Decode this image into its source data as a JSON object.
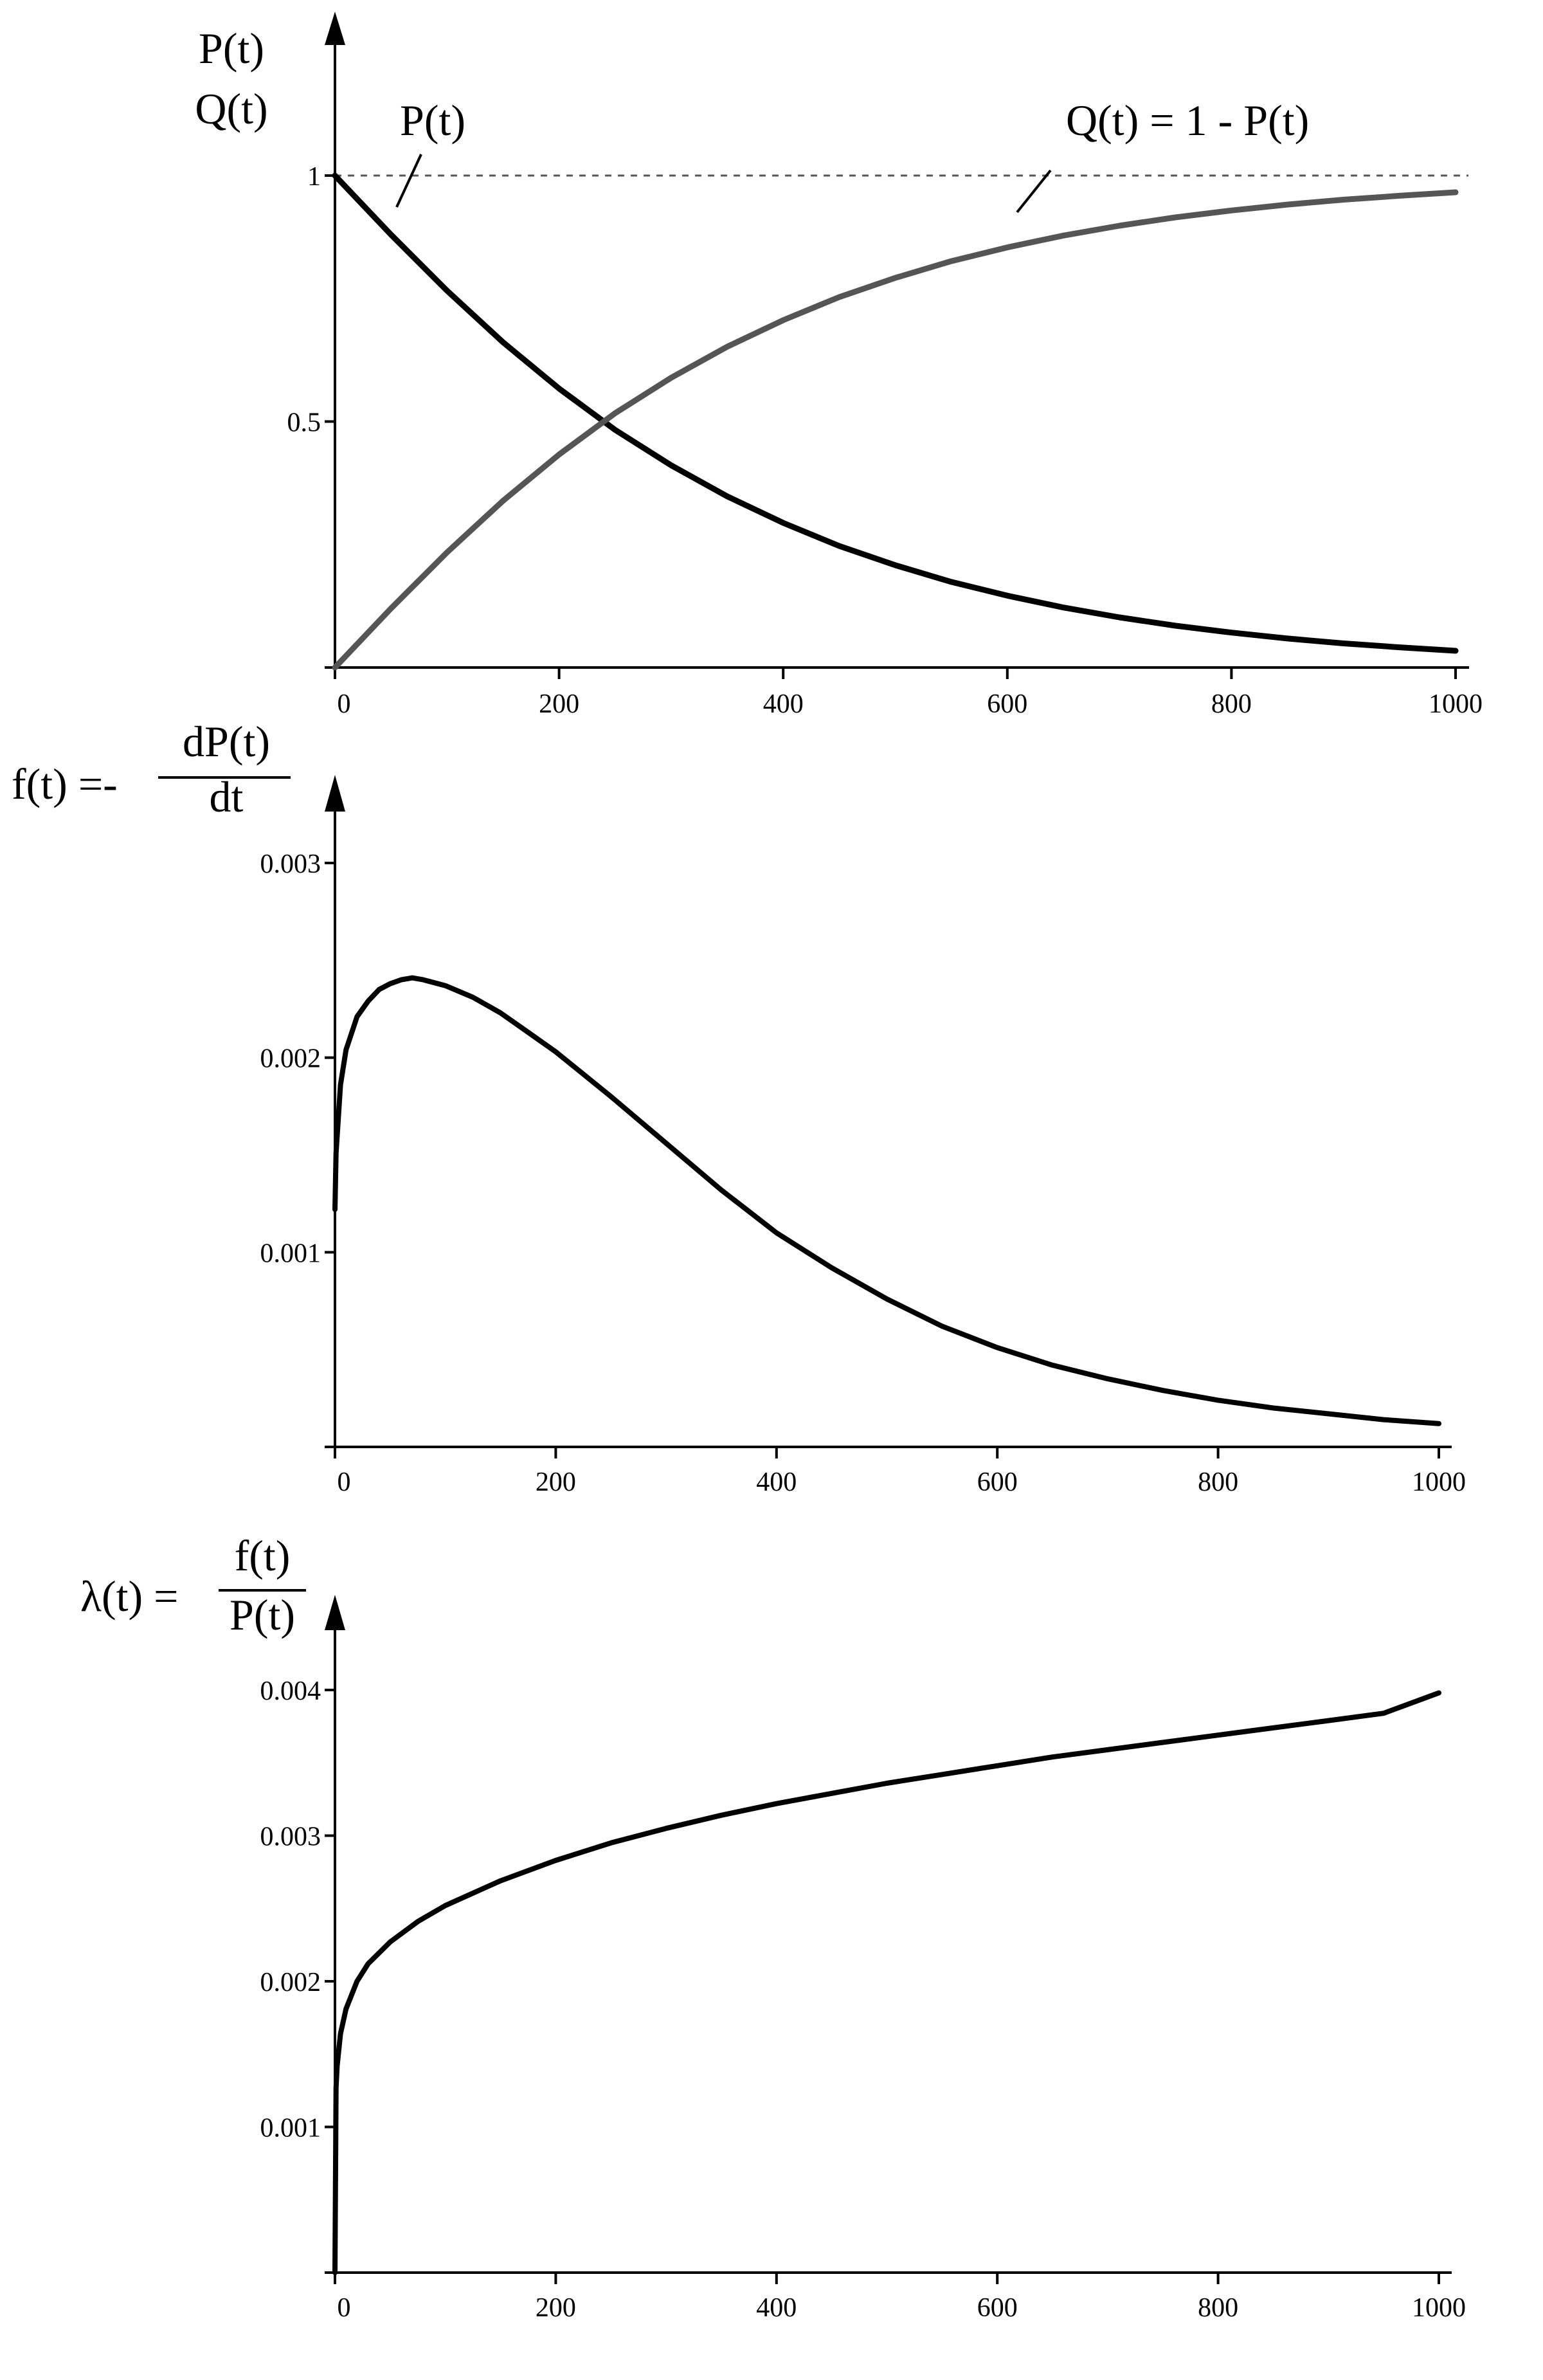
{
  "chart_data": [
    {
      "type": "line",
      "ylabel_lines": [
        "P(t)",
        "Q(t)"
      ],
      "annotations": [
        "P(t)",
        "Q(t) = 1 - P(t)"
      ],
      "xlim": [
        0,
        1000
      ],
      "ylim": [
        0,
        1
      ],
      "xticks": [
        "0",
        "200",
        "400",
        "600",
        "800",
        "1000"
      ],
      "yticks": [
        {
          "value": 0.5,
          "label": "0.5"
        },
        {
          "value": 1,
          "label": "1"
        }
      ],
      "reference_line": 1,
      "series": [
        {
          "name": "P(t)",
          "color": "#000000",
          "x": [
            0,
            50,
            100,
            150,
            200,
            250,
            300,
            350,
            400,
            450,
            500,
            550,
            600,
            650,
            700,
            750,
            800,
            850,
            900,
            950,
            1000
          ],
          "y": [
            1.0,
            0.88,
            0.766,
            0.661,
            0.567,
            0.483,
            0.411,
            0.348,
            0.294,
            0.247,
            0.208,
            0.174,
            0.146,
            0.122,
            0.102,
            0.085,
            0.071,
            0.059,
            0.049,
            0.041,
            0.034
          ]
        },
        {
          "name": "Q(t) = 1 - P(t)",
          "color": "#555555",
          "x": [
            0,
            50,
            100,
            150,
            200,
            250,
            300,
            350,
            400,
            450,
            500,
            550,
            600,
            650,
            700,
            750,
            800,
            850,
            900,
            950,
            1000
          ],
          "y": [
            0.0,
            0.12,
            0.234,
            0.339,
            0.433,
            0.517,
            0.589,
            0.652,
            0.706,
            0.753,
            0.792,
            0.826,
            0.854,
            0.878,
            0.898,
            0.915,
            0.929,
            0.941,
            0.951,
            0.959,
            0.966
          ]
        }
      ]
    },
    {
      "type": "line",
      "ylabel": {
        "lhs": "f(t) =-",
        "num": "dP(t)",
        "den": "dt"
      },
      "xlim": [
        0,
        1000
      ],
      "ylim": [
        0,
        0.003
      ],
      "xticks": [
        "0",
        "200",
        "400",
        "600",
        "800",
        "1000"
      ],
      "yticks": [
        {
          "value": 0.001,
          "label": "0.001"
        },
        {
          "value": 0.002,
          "label": "0.002"
        },
        {
          "value": 0.003,
          "label": "0.003"
        }
      ],
      "series": [
        {
          "color": "#000000",
          "x": [
            0,
            1,
            5,
            10,
            20,
            30,
            40,
            50,
            60,
            70,
            80,
            100,
            125,
            150,
            175,
            200,
            250,
            300,
            350,
            400,
            450,
            500,
            550,
            600,
            650,
            700,
            750,
            800,
            850,
            900,
            950,
            1000
          ],
          "y": [
            0.00122,
            0.00151,
            0.00186,
            0.00204,
            0.00221,
            0.00229,
            0.00235,
            0.00238,
            0.0024,
            0.00241,
            0.0024,
            0.00237,
            0.00231,
            0.00223,
            0.00213,
            0.00203,
            0.0018,
            0.00156,
            0.00132,
            0.0011,
            0.00092,
            0.00076,
            0.00062,
            0.00051,
            0.00042,
            0.00035,
            0.00029,
            0.00024,
            0.0002,
            0.00017,
            0.00014,
            0.00012
          ]
        }
      ]
    },
    {
      "type": "line",
      "ylabel": {
        "lhs": "λ(t) =",
        "num": "f(t)",
        "den": "P(t)"
      },
      "xlim": [
        0,
        1000
      ],
      "ylim": [
        0,
        0.004
      ],
      "xticks": [
        "0",
        "200",
        "400",
        "600",
        "800",
        "1000"
      ],
      "yticks": [
        {
          "value": 0.001,
          "label": "0.001"
        },
        {
          "value": 0.002,
          "label": "0.002"
        },
        {
          "value": 0.003,
          "label": "0.003"
        },
        {
          "value": 0.004,
          "label": "0.004"
        }
      ],
      "series": [
        {
          "color": "#000000",
          "x": [
            0,
            1,
            2,
            5,
            10,
            20,
            30,
            50,
            75,
            100,
            150,
            200,
            250,
            300,
            350,
            400,
            450,
            500,
            550,
            600,
            650,
            700,
            750,
            800,
            850,
            900,
            950,
            1000
          ],
          "y": [
            0,
            0.00127,
            0.00142,
            0.00164,
            0.00181,
            0.002,
            0.00212,
            0.00227,
            0.00241,
            0.00252,
            0.00269,
            0.00283,
            0.00295,
            0.00305,
            0.00314,
            0.00322,
            0.00329,
            0.00336,
            0.00342,
            0.00348,
            0.00354,
            0.00359,
            0.00364,
            0.00369,
            0.00374,
            0.00379,
            0.00384,
            0.00398
          ]
        }
      ]
    }
  ]
}
